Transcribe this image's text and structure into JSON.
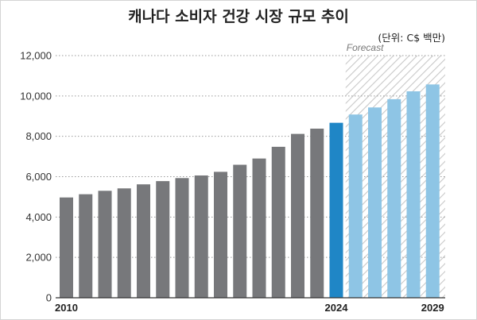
{
  "chart_data": {
    "type": "bar",
    "title": "캐나다 소비자 건강 시장 규모 추이",
    "unit_label": "(단위: C$ 백만)",
    "forecast_label": "Forecast",
    "categories": [
      "2010",
      "2011",
      "2012",
      "2013",
      "2014",
      "2015",
      "2016",
      "2017",
      "2018",
      "2019",
      "2020",
      "2021",
      "2022",
      "2023",
      "2024",
      "2025",
      "2026",
      "2027",
      "2028",
      "2029"
    ],
    "values": [
      4970,
      5130,
      5300,
      5420,
      5620,
      5780,
      5930,
      6060,
      6240,
      6590,
      6900,
      7480,
      8120,
      8380,
      8670,
      9080,
      9430,
      9840,
      10230,
      10570
    ],
    "x_tick_labels": [
      "2010",
      "2024",
      "2029"
    ],
    "y_tick_labels": [
      "0",
      "2,000",
      "4,000",
      "6,000",
      "8,000",
      "10,000",
      "12,000"
    ],
    "y_ticks": [
      0,
      2000,
      4000,
      6000,
      8000,
      10000,
      12000
    ],
    "ylim": [
      0,
      12000
    ],
    "grid": true,
    "highlight_index": 14,
    "forecast_start_index": 15,
    "colors": {
      "historical": "#77787b",
      "current": "#1f86c6",
      "forecast": "#8ec5e5",
      "grid": "#9a9a9a",
      "hatch": "#c8c8c8"
    }
  }
}
